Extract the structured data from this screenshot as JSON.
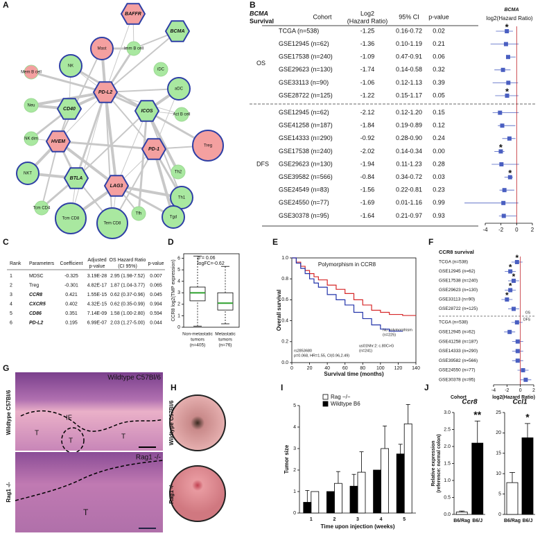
{
  "panel_labels": [
    "A",
    "B",
    "C",
    "D",
    "E",
    "F",
    "G",
    "H",
    "I",
    "J"
  ],
  "network": {
    "nodes": [
      "BAFFR",
      "BCMA",
      "Imm B cell",
      "Mast",
      "NK",
      "iDC",
      "Mem B cell",
      "aDC",
      "PD-L2",
      "Neu",
      "CD40",
      "ICOS",
      "Act B cell",
      "NK dim",
      "HVEM",
      "PD-1",
      "Treg",
      "NKT",
      "BTLA",
      "LAG3",
      "Th2",
      "Tcm CD4",
      "Th1",
      "Tcm CD8",
      "Tem CD8",
      "Tfh",
      "Tgd"
    ]
  },
  "table_b": {
    "headers": [
      [
        "BCMA",
        "Survival"
      ],
      [
        "Cohort"
      ],
      [
        "Log2",
        "(Hazard Ratio)"
      ],
      [
        "95% CI"
      ],
      [
        "p-value"
      ]
    ],
    "groups": [
      {
        "name": "OS",
        "rows": [
          {
            "cohort": "TCGA (n=538)",
            "log2": -1.25,
            "ci": "0.16-0.72",
            "p": "0.02",
            "star": "*"
          },
          {
            "cohort": "GSE12945 (n=62)",
            "log2": -1.36,
            "ci": "0.10-1.19",
            "p": "0.21"
          },
          {
            "cohort": "GSE17538 (n=240)",
            "log2": -1.09,
            "ci": "0.47-0.91",
            "p": "0.06"
          },
          {
            "cohort": "GSE29623 (n=130)",
            "log2": -1.74,
            "ci": "0.14-0.58",
            "p": "0.32"
          },
          {
            "cohort": "GSE33113 (n=90)",
            "log2": -1.06,
            "ci": "0.12-1.13",
            "p": "0.39"
          },
          {
            "cohort": "GSE28722 (n=125)",
            "log2": -1.22,
            "ci": "0.15-1.17",
            "p": "0.05",
            "star": "*"
          }
        ]
      },
      {
        "name": "DFS",
        "rows": [
          {
            "cohort": "GSE12945 (n=62)",
            "log2": -2.12,
            "ci": "0.12-1.20",
            "p": "0.15"
          },
          {
            "cohort": "GSE41258 (n=187)",
            "log2": -1.84,
            "ci": "0.19-0.89",
            "p": "0.12"
          },
          {
            "cohort": "GSE14333 (n=290)",
            "log2": -0.92,
            "ci": "0.28-0.90",
            "p": "0.24"
          },
          {
            "cohort": "GSE17538 (n=240)",
            "log2": -2.02,
            "ci": "0.14-0.34",
            "p": "0.00",
            "star": "*"
          },
          {
            "cohort": "GSE29623 (n=130)",
            "log2": -1.94,
            "ci": "0.11-1.23",
            "p": "0.28"
          },
          {
            "cohort": "GSE39582 (n=566)",
            "log2": -0.84,
            "ci": "0.34-0.72",
            "p": "0.03",
            "star": "*"
          },
          {
            "cohort": "GSE24549 (n=83)",
            "log2": -1.56,
            "ci": "0.22-0.81",
            "p": "0.23"
          },
          {
            "cohort": "GSE24550 (n=77)",
            "log2": -1.69,
            "ci": "0.01-1.16",
            "p": "0.99"
          },
          {
            "cohort": "GSE30378 (n=95)",
            "log2": -1.64,
            "ci": "0.21-0.97",
            "p": "0.93"
          }
        ]
      }
    ],
    "forest": {
      "title": "BCMA",
      "xlabel": "log2(Hazard Ratio)",
      "xlim": [
        -4,
        2
      ],
      "xticks": [
        -4,
        -2,
        0,
        2
      ],
      "color": "#4a5fc1",
      "star_color": "#e0282e",
      "zero_color": "#c0202a"
    }
  },
  "table_c": {
    "headers": [
      [
        "Rank"
      ],
      [
        "Parameters"
      ],
      [
        "Coefficient"
      ],
      [
        "Adjusted",
        "p-value"
      ],
      [
        "OS Hazard Ratio",
        "(CI 95%)"
      ],
      [
        "p-value"
      ]
    ],
    "rows": [
      [
        "1",
        "MDSC",
        "-0.325",
        "3.19E-28",
        "2.95 (1.98-7.52)",
        "0.007"
      ],
      [
        "2",
        "Treg",
        "-0.301",
        "4.82E-17",
        "1.87 (1.04-3.77)",
        "0.065"
      ],
      [
        "3",
        "CCR8",
        "0.421",
        "1.55E-15",
        "0.62 (0.37-0.96)",
        "0.045"
      ],
      [
        "4",
        "CXCR5",
        "0.402",
        "4.32E-15",
        "0.62 (0.35-0.99)",
        "0.994"
      ],
      [
        "5",
        "CD86",
        "0.351",
        "7.14E-09",
        "1.58 (1.00-2.80)",
        "0.594"
      ],
      [
        "6",
        "PD-L2",
        "0.195",
        "6.99E-07",
        "2.03 (1.27-5.00)",
        "0.044"
      ]
    ]
  },
  "images": {
    "g_top": "Wildtype C57Bl/6",
    "g_side": [
      "Wildtype C57Bl/6",
      "Rag1 -/-"
    ],
    "g_bottom": "Rag1 -/-",
    "g_marks": [
      "IF",
      "T",
      "T",
      "T",
      "T"
    ],
    "h_side": [
      "Wildtype C57Bl/6",
      "Rag1 -/-"
    ]
  },
  "chart_data": [
    {
      "type": "box",
      "ylabel": "CCR8 log2(TMP expression)",
      "annotations": [
        "p = 0.06",
        "logFC=-0.62"
      ],
      "categories": [
        [
          "Non-metastatic",
          "tumors",
          "(n=405)"
        ],
        [
          "Metastatic",
          "tumors",
          "(n=76)"
        ]
      ],
      "whislo": [
        0.1,
        0.3
      ],
      "q1": [
        2.3,
        1.5
      ],
      "med": [
        3.0,
        2.1
      ],
      "q3": [
        3.5,
        3.0
      ],
      "whishi": [
        6.2,
        5.3
      ],
      "ylim": [
        0,
        6.4
      ],
      "yticks": [
        0,
        1,
        2,
        3,
        4,
        5,
        6
      ],
      "median_color": "#2ca02c"
    },
    {
      "type": "km",
      "title": "Polymorphism in CCR8",
      "xlabel": "Survival time (months)",
      "ylabel": "Overall survival",
      "xlim": [
        0,
        140
      ],
      "xticks": [
        0,
        20,
        40,
        60,
        80,
        100,
        120,
        140
      ],
      "ylim": [
        0,
        1
      ],
      "yticks": [
        {
          "value": 0,
          "label": "0.0"
        },
        0.2,
        0.4,
        0.6,
        0.8,
        {
          "value": 1,
          "label": "1.0"
        }
      ],
      "series": [
        {
          "name": "No polymorphism",
          "n": "(n=225)",
          "color": "#d62728",
          "x": [
            0,
            5,
            10,
            15,
            20,
            25,
            30,
            40,
            50,
            60,
            70,
            80,
            90,
            100,
            110,
            125,
            140
          ],
          "values": [
            1,
            0.96,
            0.92,
            0.88,
            0.85,
            0.82,
            0.79,
            0.74,
            0.7,
            0.66,
            0.6,
            0.55,
            0.5,
            0.48,
            0.46,
            0.45,
            0.45
          ]
        },
        {
          "name": "us01Nhr:2: c.80C>G",
          "n": "(n=241)",
          "color": "#2233aa",
          "x": [
            0,
            5,
            10,
            15,
            20,
            25,
            30,
            40,
            50,
            60,
            70,
            80,
            90,
            100,
            110,
            125
          ],
          "values": [
            1,
            0.95,
            0.9,
            0.85,
            0.8,
            0.76,
            0.72,
            0.65,
            0.6,
            0.55,
            0.48,
            0.42,
            0.36,
            0.32,
            0.3,
            0.3
          ]
        }
      ],
      "annotations": [
        "rs2853680",
        "p=0.068, HR=1.55, CI(0.96,2.49)"
      ]
    },
    {
      "type": "forest",
      "title": "CCR8 survival",
      "xlabel": "log2(Hazard Ratio)",
      "ylabel": "Cohort",
      "xlim": [
        -4,
        2
      ],
      "xticks": [
        -4,
        -2,
        0,
        2
      ],
      "color": "#4a5fc1",
      "star_color": "#e0282e",
      "groups": [
        {
          "name": "OS",
          "categories": [
            "TCGA (n=538)",
            "GSE12945 (n=62)",
            "GSE17538 (n=240)",
            "GSE29623 (n=130)",
            "GSE33113 (n=90)",
            "GSE28722 (n=125)"
          ],
          "values": [
            -0.5,
            -1.5,
            -1.0,
            -1.5,
            -2.0,
            -1.0
          ],
          "stars": [
            "*",
            "*",
            "*",
            "*",
            "*",
            null
          ]
        },
        {
          "name": "DFS",
          "categories": [
            "TCGA (n=538)",
            "GSE12945 (n=62)",
            "GSE41258 (n=187)",
            "GSE14333 (n=290)",
            "GSE39582 (n=566)",
            "GSE24550 (n=77)",
            "GSE30378 (n=95)"
          ],
          "values": [
            -0.5,
            -1.6,
            -0.4,
            -0.4,
            -0.4,
            0.4,
            0.8
          ],
          "stars": [
            null,
            null,
            null,
            null,
            null,
            null,
            null
          ]
        }
      ]
    },
    {
      "type": "grouped_bar",
      "xlabel": "Time upon injection (weeks)",
      "ylabel": "Tumor size",
      "categories": [
        "1",
        "2",
        "3",
        "4",
        "5"
      ],
      "ylim": [
        0,
        5
      ],
      "yticks": [
        0,
        1,
        2,
        3,
        4,
        5
      ],
      "series": [
        {
          "name": "Rag −/−",
          "color": "#ffffff",
          "values": [
            1.0,
            1.38,
            1.9,
            3.0,
            4.15
          ],
          "errors": [
            0,
            0.55,
            0.95,
            1.05,
            0.9
          ]
        },
        {
          "name": "Wildtype B6",
          "color": "#000000",
          "values": [
            0.5,
            1.0,
            1.25,
            2.0,
            2.75
          ],
          "errors": [
            0.55,
            0,
            0.55,
            0,
            0.45
          ]
        }
      ]
    },
    {
      "type": "bar",
      "title": "Ccr8",
      "ylabel": [
        "Relative expression",
        "(reference: normal colon)"
      ],
      "categories": [
        "B6/Rag",
        "B6/J"
      ],
      "values": [
        0.07,
        2.1
      ],
      "errors": [
        0.03,
        0.65
      ],
      "colors": [
        "#ffffff",
        "#000000"
      ],
      "annotation": "**",
      "ylim": [
        0,
        3
      ],
      "yticks": [
        {
          "value": 0,
          "label": "0.0"
        },
        0.5,
        {
          "value": 1,
          "label": "1.0"
        },
        1.5,
        {
          "value": 2,
          "label": "2.0"
        },
        2.5,
        {
          "value": 3,
          "label": "3.0"
        }
      ]
    },
    {
      "type": "bar",
      "title": "Ccl1",
      "categories": [
        "B6/Rag",
        "B6/J"
      ],
      "values": [
        7.8,
        18.8
      ],
      "errors": [
        2.5,
        3.5
      ],
      "colors": [
        "#ffffff",
        "#000000"
      ],
      "annotation": "*",
      "ylim": [
        0,
        25
      ],
      "yticks": [
        0,
        5,
        10,
        15,
        20,
        25
      ]
    }
  ]
}
